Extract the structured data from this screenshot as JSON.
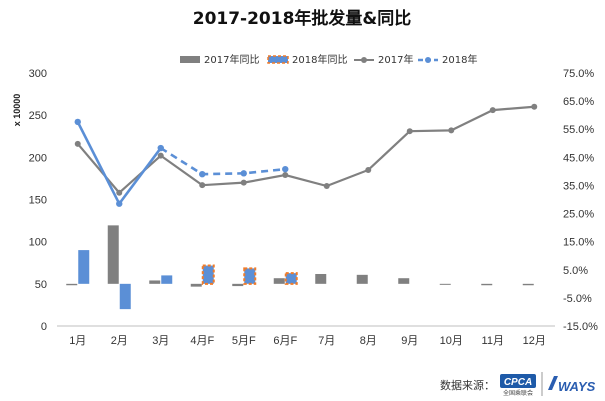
{
  "chart_data": {
    "type": "bar+line",
    "title": "2017-2018年批发量&同比",
    "unit_label": "x 10000",
    "categories": [
      "1月",
      "2月",
      "3月",
      "4月F",
      "5月F",
      "6月F",
      "7月",
      "8月",
      "9月",
      "10月",
      "11月",
      "12月"
    ],
    "y_left": {
      "min": 0,
      "max": 300,
      "step": 50,
      "ticks": [
        "0",
        "50",
        "100",
        "150",
        "200",
        "250",
        "300"
      ]
    },
    "y_right": {
      "min": -15,
      "max": 75,
      "ticks": [
        "-15.0%",
        "-5.0%",
        "5.0%",
        "15.0%",
        "25.0%",
        "35.0%",
        "45.0%",
        "55.0%",
        "65.0%",
        "75.0%"
      ]
    },
    "series": [
      {
        "name": "2017年同比",
        "kind": "bar",
        "axis": "right",
        "color": "#808080",
        "values": [
          -0.5,
          20.8,
          1.2,
          -1.0,
          -0.8,
          2.0,
          3.5,
          3.2,
          2.0,
          -0.3,
          -0.5,
          -0.5
        ]
      },
      {
        "name": "2018年同比",
        "kind": "bar",
        "axis": "right",
        "color": "#5b8fd6",
        "forecast_from": 3,
        "values": [
          12.0,
          -9.0,
          3.0,
          6.5,
          5.5,
          3.8,
          null,
          null,
          null,
          null,
          null,
          null
        ]
      },
      {
        "name": "2017年",
        "kind": "line",
        "axis": "left",
        "color": "#808080",
        "values": [
          216,
          158,
          202,
          167,
          170,
          179,
          166,
          185,
          231,
          232,
          256,
          260
        ]
      },
      {
        "name": "2018年",
        "kind": "line",
        "axis": "left",
        "color": "#5b8fd6",
        "forecast_from": 2,
        "values": [
          242,
          145,
          211,
          180,
          181,
          186,
          null,
          null,
          null,
          null,
          null,
          null
        ]
      }
    ],
    "legend_position": "top-right",
    "grid": false
  },
  "footer": {
    "source_label": "数据来源：",
    "logo1_text": "CPCA",
    "logo1_sub": "全国乘联会",
    "logo2_text": "WAYS"
  }
}
